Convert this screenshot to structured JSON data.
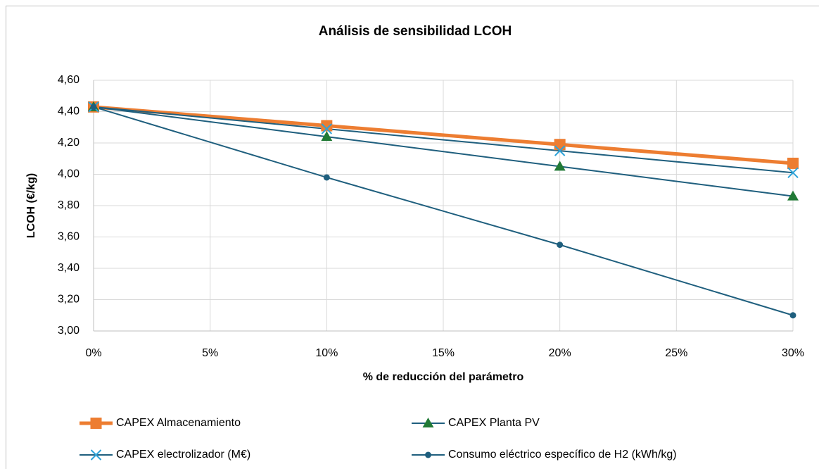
{
  "chart_data": {
    "type": "line",
    "title": "Análisis de sensibilidad LCOH",
    "x_label": "% de reducción del parámetro",
    "y_label": "LCOH (€/kg)",
    "x": [
      0,
      10,
      20,
      30
    ],
    "xlim": [
      0,
      30
    ],
    "xticks": [
      {
        "value": 0,
        "label": "0%"
      },
      {
        "value": 5,
        "label": "5%"
      },
      {
        "value": 10,
        "label": "10%"
      },
      {
        "value": 15,
        "label": "15%"
      },
      {
        "value": 20,
        "label": "20%"
      },
      {
        "value": 25,
        "label": "25%"
      },
      {
        "value": 30,
        "label": "30%"
      }
    ],
    "ylim": [
      3.0,
      4.6
    ],
    "yticks": [
      {
        "value": 3.0,
        "label": "3,00"
      },
      {
        "value": 3.2,
        "label": "3,20"
      },
      {
        "value": 3.4,
        "label": "3,40"
      },
      {
        "value": 3.6,
        "label": "3,60"
      },
      {
        "value": 3.8,
        "label": "3,80"
      },
      {
        "value": 4.0,
        "label": "4,00"
      },
      {
        "value": 4.2,
        "label": "4,20"
      },
      {
        "value": 4.4,
        "label": "4,40"
      },
      {
        "value": 4.6,
        "label": "4,60"
      }
    ],
    "grid": true,
    "legend": "bottom",
    "series": [
      {
        "name": "CAPEX Almacenamiento",
        "color": "#ed7d31",
        "marker": "square",
        "marker_color": "#ed7d31",
        "line_width": 5,
        "values": [
          4.43,
          4.31,
          4.19,
          4.07
        ]
      },
      {
        "name": "CAPEX Planta PV",
        "color": "#1f5f7e",
        "marker": "triangle",
        "marker_color": "#217a36",
        "line_width": 2,
        "values": [
          4.43,
          4.24,
          4.05,
          3.86
        ]
      },
      {
        "name": "CAPEX electrolizador (M€)",
        "color": "#1f5f7e",
        "marker": "x",
        "marker_color": "#2ea3d9",
        "line_width": 2,
        "values": [
          4.43,
          4.29,
          4.15,
          4.01
        ]
      },
      {
        "name": "Consumo eléctrico específico de H2 (kWh/kg)",
        "color": "#1f5f7e",
        "marker": "circle",
        "marker_color": "#1f5f7e",
        "line_width": 2,
        "values": [
          4.43,
          3.98,
          3.55,
          3.1
        ]
      }
    ]
  }
}
